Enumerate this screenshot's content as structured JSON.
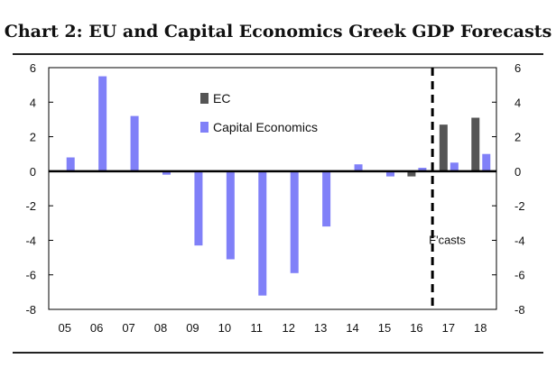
{
  "chart_data": {
    "type": "bar",
    "title": "Chart 2: EU and Capital Economics Greek GDP Forecasts",
    "categories": [
      "05",
      "06",
      "07",
      "08",
      "09",
      "10",
      "11",
      "12",
      "13",
      "14",
      "15",
      "16",
      "17",
      "18"
    ],
    "series": [
      {
        "name": "EC",
        "color": "#555555",
        "values": [
          null,
          null,
          null,
          null,
          null,
          null,
          null,
          null,
          null,
          null,
          null,
          -0.3,
          2.7,
          3.1
        ]
      },
      {
        "name": "Capital Economics",
        "color": "#8080f8",
        "values": [
          0.8,
          5.5,
          3.2,
          -0.2,
          -4.3,
          -5.1,
          -7.2,
          -5.9,
          -3.2,
          0.4,
          -0.3,
          0.2,
          0.5,
          1.0
        ]
      }
    ],
    "ylim": [
      -8,
      6
    ],
    "yticks": [
      "-8",
      "-6",
      "-4",
      "-2",
      "0",
      "2",
      "4",
      "6"
    ],
    "forecast_annotation": "F'casts",
    "legend_position": "top-center"
  }
}
